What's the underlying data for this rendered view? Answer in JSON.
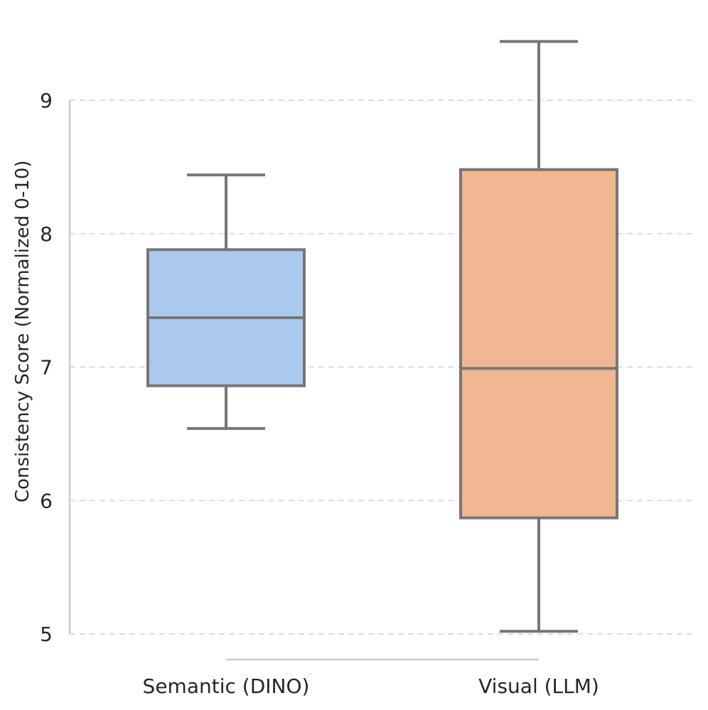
{
  "chart_data": {
    "type": "box",
    "title": "",
    "xlabel": "",
    "ylabel": "Consistency Score (Normalized 0-10)",
    "ylim": [
      5,
      9.45
    ],
    "yticks": [
      5,
      6,
      7,
      8,
      9
    ],
    "ytick_labels": [
      "5",
      "6",
      "7",
      "8",
      "9"
    ],
    "grid": true,
    "categories": [
      "Semantic (DINO)",
      "Visual (LLM)"
    ],
    "series": [
      {
        "name": "Semantic (DINO)",
        "whisker_low": 6.54,
        "q1": 6.86,
        "median": 7.37,
        "q3": 7.88,
        "whisker_high": 8.44,
        "color": "#abc9ec"
      },
      {
        "name": "Visual (LLM)",
        "whisker_low": 5.02,
        "q1": 5.87,
        "median": 6.99,
        "q3": 8.48,
        "whisker_high": 9.44,
        "color": "#f1b792"
      }
    ],
    "colors": {
      "box_edge": "#767676",
      "grid": "#dddddd",
      "axis_spine": "#cccccc"
    }
  }
}
